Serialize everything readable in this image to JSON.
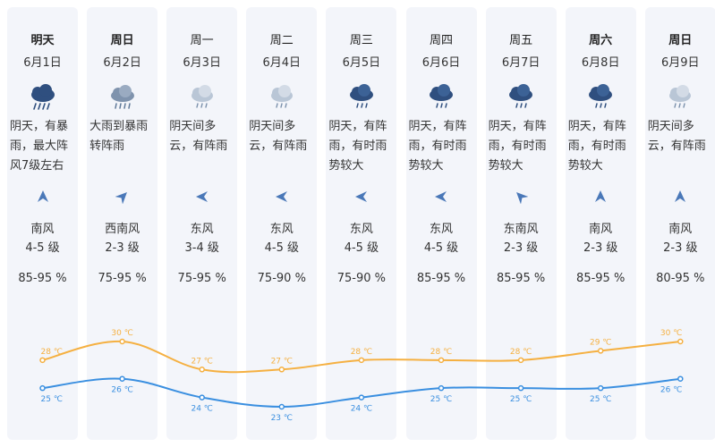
{
  "days": [
    {
      "day": "明天",
      "bold": true,
      "date": "6月1日",
      "icon": "heavy-rain-icon",
      "desc": "阴天，有暴雨，最大阵风7级左右",
      "wind_dir": "南风",
      "wind_level": "4-5 级",
      "wind_angle": 0,
      "humidity": "85-95 %",
      "high": 28,
      "low": 25,
      "high_label": "28 ℃",
      "low_label": "25 ℃"
    },
    {
      "day": "周日",
      "bold": true,
      "date": "6月2日",
      "icon": "rain-icon",
      "desc": "大雨到暴雨转阵雨",
      "wind_dir": "西南风",
      "wind_level": "2-3 级",
      "wind_angle": 45,
      "humidity": "75-95 %",
      "high": 30,
      "low": 26,
      "high_label": "30 ℃",
      "low_label": "26 ℃"
    },
    {
      "day": "周一",
      "bold": false,
      "date": "6月3日",
      "icon": "cloudy-shower-icon",
      "desc": "阴天间多云，有阵雨",
      "wind_dir": "东风",
      "wind_level": "3-4 级",
      "wind_angle": -90,
      "humidity": "75-95 %",
      "high": 27,
      "low": 24,
      "high_label": "27 ℃",
      "low_label": "24 ℃"
    },
    {
      "day": "周二",
      "bold": false,
      "date": "6月4日",
      "icon": "cloudy-shower-icon",
      "desc": "阴天间多云，有阵雨",
      "wind_dir": "东风",
      "wind_level": "4-5 级",
      "wind_angle": -90,
      "humidity": "75-90 %",
      "high": 27,
      "low": 23,
      "high_label": "27 ℃",
      "low_label": "23 ℃"
    },
    {
      "day": "周三",
      "bold": false,
      "date": "6月5日",
      "icon": "shower-icon",
      "desc": "阴天，有阵雨，有时雨势较大",
      "wind_dir": "东风",
      "wind_level": "4-5 级",
      "wind_angle": -90,
      "humidity": "75-90 %",
      "high": 28,
      "low": 24,
      "high_label": "28 ℃",
      "low_label": "24 ℃"
    },
    {
      "day": "周四",
      "bold": false,
      "date": "6月6日",
      "icon": "shower-icon",
      "desc": "阴天，有阵雨，有时雨势较大",
      "wind_dir": "东风",
      "wind_level": "4-5 级",
      "wind_angle": -90,
      "humidity": "85-95 %",
      "high": 28,
      "low": 25,
      "high_label": "28 ℃",
      "low_label": "25 ℃"
    },
    {
      "day": "周五",
      "bold": false,
      "date": "6月7日",
      "icon": "shower-icon",
      "desc": "阴天，有阵雨，有时雨势较大",
      "wind_dir": "东南风",
      "wind_level": "2-3 级",
      "wind_angle": -45,
      "humidity": "85-95 %",
      "high": 28,
      "low": 25,
      "high_label": "28 ℃",
      "low_label": "25 ℃"
    },
    {
      "day": "周六",
      "bold": true,
      "date": "6月8日",
      "icon": "shower-icon",
      "desc": "阴天，有阵雨，有时雨势较大",
      "wind_dir": "南风",
      "wind_level": "2-3 级",
      "wind_angle": 0,
      "humidity": "85-95 %",
      "high": 29,
      "low": 25,
      "high_label": "29 ℃",
      "low_label": "25 ℃"
    },
    {
      "day": "周日",
      "bold": true,
      "date": "6月9日",
      "icon": "cloudy-shower-icon",
      "desc": "阴天间多云，有阵雨",
      "wind_dir": "南风",
      "wind_level": "2-3 级",
      "wind_angle": 0,
      "humidity": "80-95 %",
      "high": 30,
      "low": 26,
      "high_label": "30 ℃",
      "low_label": "26 ℃"
    }
  ],
  "colors": {
    "high": "#f5b041",
    "low": "#3a8fe0",
    "icon_dark": "#2f4f7f",
    "icon_light": "#b9c6d6",
    "arrow": "#4a78b8"
  },
  "chart_data": {
    "type": "line",
    "categories": [
      "6月1日",
      "6月2日",
      "6月3日",
      "6月4日",
      "6月5日",
      "6月6日",
      "6月7日",
      "6月8日",
      "6月9日"
    ],
    "series": [
      {
        "values": [
          28,
          30,
          27,
          27,
          28,
          28,
          28,
          29,
          30
        ]
      },
      {
        "values": [
          25,
          26,
          24,
          23,
          24,
          25,
          25,
          25,
          26
        ]
      }
    ],
    "ylim": [
      23,
      30
    ],
    "grid": false
  }
}
